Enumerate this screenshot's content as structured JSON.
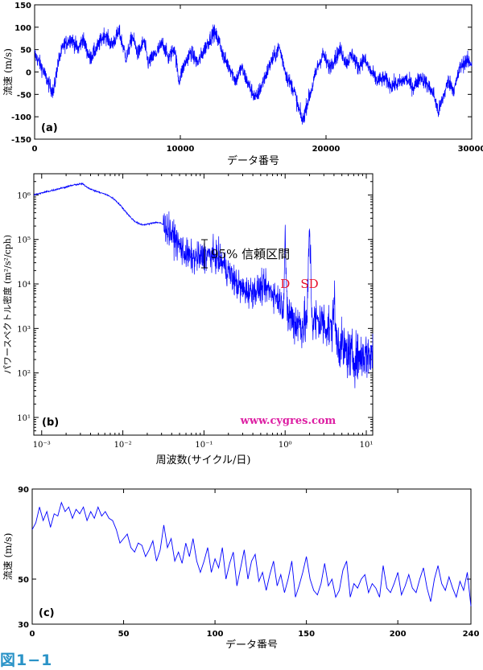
{
  "figure_caption": "図1−1",
  "chart_data": [
    {
      "id": "a",
      "type": "line",
      "panel_label": "(a)",
      "xlabel": "データ番号",
      "ylabel": "流速 (m/s)",
      "xlim": [
        0,
        30000
      ],
      "ylim": [
        -150,
        150
      ],
      "xticks": [
        0,
        10000,
        20000,
        30000
      ],
      "yticks": [
        -150,
        -100,
        -50,
        0,
        50,
        100,
        150
      ],
      "series_color": "#0000ff",
      "profile": [
        [
          0,
          40
        ],
        [
          500,
          10
        ],
        [
          1000,
          -30
        ],
        [
          1300,
          -45
        ],
        [
          1600,
          20
        ],
        [
          2000,
          60
        ],
        [
          2500,
          75
        ],
        [
          3000,
          50
        ],
        [
          3300,
          75
        ],
        [
          3800,
          30
        ],
        [
          4300,
          55
        ],
        [
          4800,
          85
        ],
        [
          5300,
          60
        ],
        [
          5800,
          90
        ],
        [
          6300,
          30
        ],
        [
          6700,
          80
        ],
        [
          7100,
          40
        ],
        [
          7500,
          70
        ],
        [
          7800,
          20
        ],
        [
          8300,
          40
        ],
        [
          8800,
          65
        ],
        [
          9200,
          30
        ],
        [
          9600,
          55
        ],
        [
          9900,
          -20
        ],
        [
          10200,
          10
        ],
        [
          10700,
          45
        ],
        [
          11200,
          20
        ],
        [
          11800,
          60
        ],
        [
          12300,
          90
        ],
        [
          12700,
          65
        ],
        [
          13000,
          30
        ],
        [
          13400,
          10
        ],
        [
          13800,
          -20
        ],
        [
          14200,
          10
        ],
        [
          14700,
          -30
        ],
        [
          15200,
          -60
        ],
        [
          15700,
          -20
        ],
        [
          16200,
          20
        ],
        [
          16800,
          55
        ],
        [
          17300,
          -10
        ],
        [
          17800,
          -40
        ],
        [
          18100,
          -80
        ],
        [
          18400,
          -110
        ],
        [
          18700,
          -70
        ],
        [
          19000,
          -40
        ],
        [
          19400,
          10
        ],
        [
          19800,
          40
        ],
        [
          20200,
          10
        ],
        [
          20600,
          30
        ],
        [
          21000,
          50
        ],
        [
          21400,
          20
        ],
        [
          21800,
          40
        ],
        [
          22200,
          10
        ],
        [
          22600,
          30
        ],
        [
          23000,
          5
        ],
        [
          23500,
          -20
        ],
        [
          24000,
          -15
        ],
        [
          24500,
          -30
        ],
        [
          25000,
          -25
        ],
        [
          25500,
          -15
        ],
        [
          26000,
          -35
        ],
        [
          26500,
          -10
        ],
        [
          27000,
          -30
        ],
        [
          27400,
          -50
        ],
        [
          27700,
          -90
        ],
        [
          28000,
          -60
        ],
        [
          28400,
          -20
        ],
        [
          28800,
          -40
        ],
        [
          29200,
          10
        ],
        [
          29600,
          25
        ],
        [
          30000,
          20
        ]
      ]
    },
    {
      "id": "b",
      "type": "line",
      "panel_label": "(b)",
      "xlabel": "周波数(サイクル/日)",
      "ylabel": "パワースペクトル密度 (m²/s²/cph)",
      "xscale": "log",
      "yscale": "log",
      "xlim": [
        0.0008,
        12
      ],
      "ylim": [
        4,
        3000000
      ],
      "xtick_labels": [
        "10⁻³",
        "10⁻²",
        "10⁻¹",
        "10⁰",
        "10¹"
      ],
      "ytick_labels": [
        "10¹",
        "10²",
        "10³",
        "10⁴",
        "10⁵",
        "10⁶"
      ],
      "series_color": "#0000ff",
      "peaks": [
        {
          "label": "D",
          "x": 1.0
        },
        {
          "label": "SD",
          "x": 2.0
        }
      ],
      "peak_label_color": "#e8112d",
      "confidence_label": "95% 信頼区間",
      "watermark": "www.cygres.com",
      "watermark_color": "#dd1fa3"
    },
    {
      "id": "c",
      "type": "line",
      "panel_label": "(c)",
      "xlabel": "データ番号",
      "ylabel": "流速 (m/s)",
      "xlim": [
        0,
        240
      ],
      "ylim": [
        30,
        90
      ],
      "xticks": [
        0,
        50,
        100,
        150,
        200,
        240
      ],
      "yticks": [
        30,
        50,
        90
      ],
      "series_color": "#0000ff",
      "x": [
        0,
        2,
        4,
        6,
        8,
        10,
        12,
        14,
        16,
        18,
        20,
        22,
        24,
        26,
        28,
        30,
        32,
        34,
        36,
        38,
        40,
        42,
        44,
        46,
        48,
        50,
        52,
        54,
        56,
        58,
        60,
        62,
        64,
        66,
        68,
        70,
        72,
        74,
        76,
        78,
        80,
        82,
        84,
        86,
        88,
        90,
        92,
        94,
        96,
        98,
        100,
        102,
        104,
        106,
        108,
        110,
        112,
        114,
        116,
        118,
        120,
        122,
        124,
        126,
        128,
        130,
        132,
        134,
        136,
        138,
        140,
        142,
        144,
        146,
        148,
        150,
        152,
        154,
        156,
        158,
        160,
        162,
        164,
        166,
        168,
        170,
        172,
        174,
        176,
        178,
        180,
        182,
        184,
        186,
        188,
        190,
        192,
        194,
        196,
        198,
        200,
        202,
        204,
        206,
        208,
        210,
        212,
        214,
        216,
        218,
        220,
        222,
        224,
        226,
        228,
        230,
        232,
        234,
        236,
        238,
        240
      ],
      "values": [
        72,
        75,
        82,
        76,
        80,
        73,
        79,
        78,
        84,
        80,
        82,
        77,
        81,
        79,
        82,
        76,
        80,
        77,
        82,
        78,
        80,
        77,
        76,
        72,
        66,
        68,
        70,
        64,
        62,
        66,
        65,
        60,
        63,
        67,
        58,
        63,
        74,
        64,
        68,
        58,
        62,
        57,
        66,
        60,
        68,
        58,
        53,
        58,
        64,
        53,
        59,
        55,
        64,
        50,
        57,
        62,
        47,
        55,
        63,
        50,
        58,
        61,
        49,
        53,
        45,
        52,
        58,
        47,
        52,
        44,
        50,
        58,
        42,
        47,
        53,
        60,
        50,
        45,
        43,
        48,
        57,
        47,
        50,
        42,
        45,
        54,
        58,
        42,
        48,
        46,
        50,
        52,
        44,
        48,
        46,
        42,
        56,
        46,
        44,
        48,
        53,
        43,
        47,
        52,
        46,
        44,
        50,
        55,
        46,
        40,
        50,
        56,
        48,
        45,
        51,
        46,
        42,
        49,
        45,
        53,
        38
      ]
    }
  ]
}
